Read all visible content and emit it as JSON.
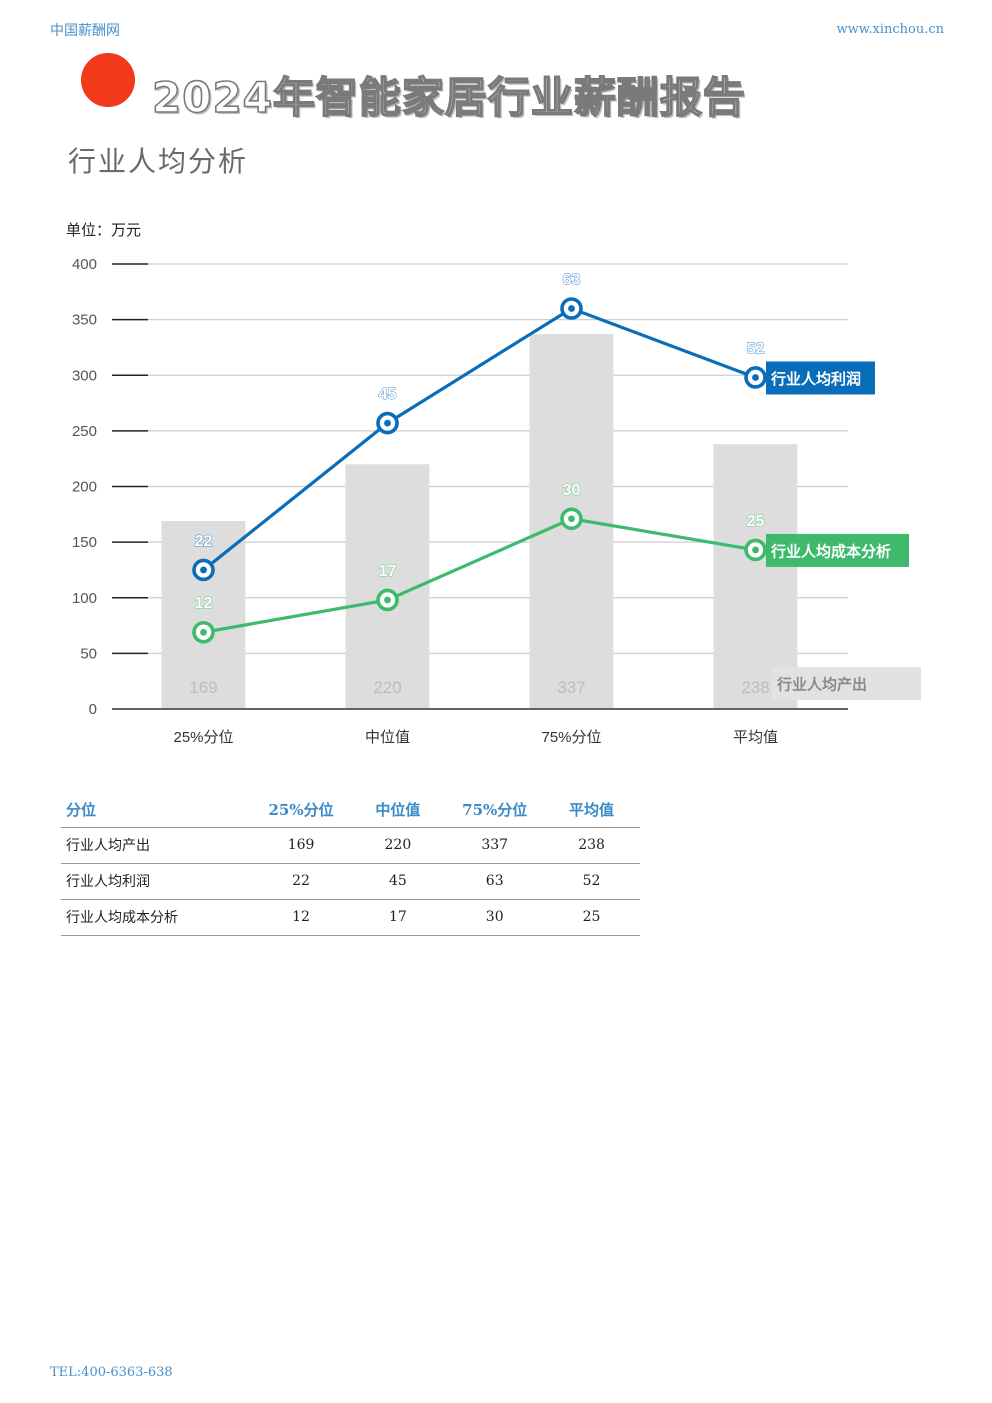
{
  "header": {
    "brand_left": "中国薪酬网",
    "brand_right": "www.xinchou.cn",
    "report_title": "2024年智能家居行业薪酬报告",
    "section_title": "行业人均分析"
  },
  "colors": {
    "accent_red": "#f2391c",
    "profit_blue": "#0a6dba",
    "cost_green": "#3dba6c",
    "output_bar_gray": "#dddddd"
  },
  "chart_data": {
    "type": "bar",
    "unit_label": "单位：万元",
    "categories": [
      "25%分位",
      "中位值",
      "75%分位",
      "平均值"
    ],
    "ylim": [
      0,
      400
    ],
    "yticks": [
      0,
      50,
      100,
      150,
      200,
      250,
      300,
      350,
      400
    ],
    "grid": true,
    "series": [
      {
        "name": "行业人均产出",
        "type": "bar",
        "color": "#dddddd",
        "values": [
          169,
          220,
          337,
          238
        ]
      },
      {
        "name": "行业人均利润",
        "type": "line",
        "color": "#0a6dba",
        "values": [
          22,
          45,
          63,
          52
        ],
        "plot_values": [
          125,
          257,
          360,
          298
        ]
      },
      {
        "name": "行业人均成本分析",
        "type": "line",
        "color": "#3dba6c",
        "values": [
          12,
          17,
          30,
          25
        ],
        "plot_values": [
          69,
          98,
          171,
          143
        ]
      }
    ]
  },
  "table": {
    "headers": [
      "分位",
      "25%分位",
      "中位值",
      "75%分位",
      "平均值"
    ],
    "rows": [
      [
        "行业人均产出",
        "169",
        "220",
        "337",
        "238"
      ],
      [
        "行业人均利润",
        "22",
        "45",
        "63",
        "52"
      ],
      [
        "行业人均成本分析",
        "12",
        "17",
        "30",
        "25"
      ]
    ]
  },
  "footer": {
    "tel": "TEL:400-6363-638"
  }
}
